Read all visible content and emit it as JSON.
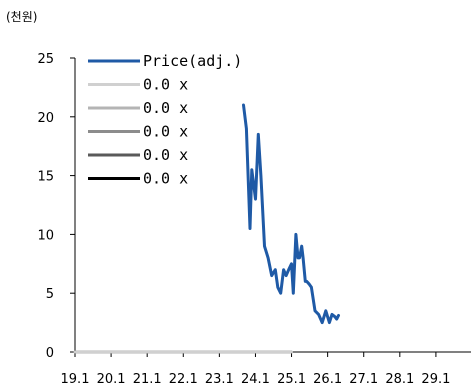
{
  "chart_data": {
    "type": "line",
    "unit_label": "(천원)",
    "title": "",
    "xlabel": "",
    "ylabel": "",
    "x_ticks": [
      "19.1",
      "20.1",
      "21.1",
      "22.1",
      "23.1",
      "24.1",
      "25.1",
      "26.1",
      "27.1",
      "28.1",
      "29.1"
    ],
    "x_range": [
      2019.0,
      2030.0
    ],
    "ylim": [
      0,
      25
    ],
    "y_ticks": [
      "0",
      "5",
      "10",
      "15",
      "20",
      "25"
    ],
    "grid": false,
    "legend": "top-left",
    "series": [
      {
        "name": "Price(adj.)",
        "color": "#1f5aa6",
        "x": [
          2023.67,
          2023.75,
          2023.85,
          2023.9,
          2024.0,
          2024.08,
          2024.15,
          2024.25,
          2024.35,
          2024.45,
          2024.55,
          2024.62,
          2024.7,
          2024.78,
          2024.85,
          2024.92,
          2025.0,
          2025.05,
          2025.12,
          2025.18,
          2025.22,
          2025.28,
          2025.32,
          2025.38,
          2025.42,
          2025.48,
          2025.55,
          2025.65,
          2025.75,
          2025.85,
          2025.95,
          2026.05,
          2026.12,
          2026.2,
          2026.25,
          2026.3
        ],
        "values": [
          21.0,
          19.0,
          10.5,
          15.5,
          13.0,
          18.5,
          15.0,
          9.0,
          8.0,
          6.5,
          7.0,
          5.5,
          5.0,
          7.0,
          6.5,
          7.0,
          7.5,
          5.0,
          10.0,
          8.0,
          8.0,
          9.0,
          8.0,
          6.0,
          6.0,
          5.8,
          5.5,
          3.5,
          3.2,
          2.5,
          3.5,
          2.5,
          3.2,
          3.0,
          2.8,
          3.1
        ]
      },
      {
        "name": "0.0 x",
        "color": "#d0d0d0",
        "x": [
          2019.0,
          2025.0
        ],
        "values": [
          0,
          0
        ]
      },
      {
        "name": "0.0 x",
        "color": "#b4b4b4",
        "x": [
          2019.0,
          2025.0
        ],
        "values": [
          0,
          0
        ]
      },
      {
        "name": "0.0 x",
        "color": "#8c8c8c",
        "x": [
          2019.0,
          2025.0
        ],
        "values": [
          0,
          0
        ]
      },
      {
        "name": "0.0 x",
        "color": "#5a5a5a",
        "x": [
          2019.0,
          2025.0
        ],
        "values": [
          0,
          0
        ]
      },
      {
        "name": "0.0 x",
        "color": "#000000",
        "x": [
          2019.0,
          2025.0
        ],
        "values": [
          0,
          0
        ]
      }
    ]
  }
}
